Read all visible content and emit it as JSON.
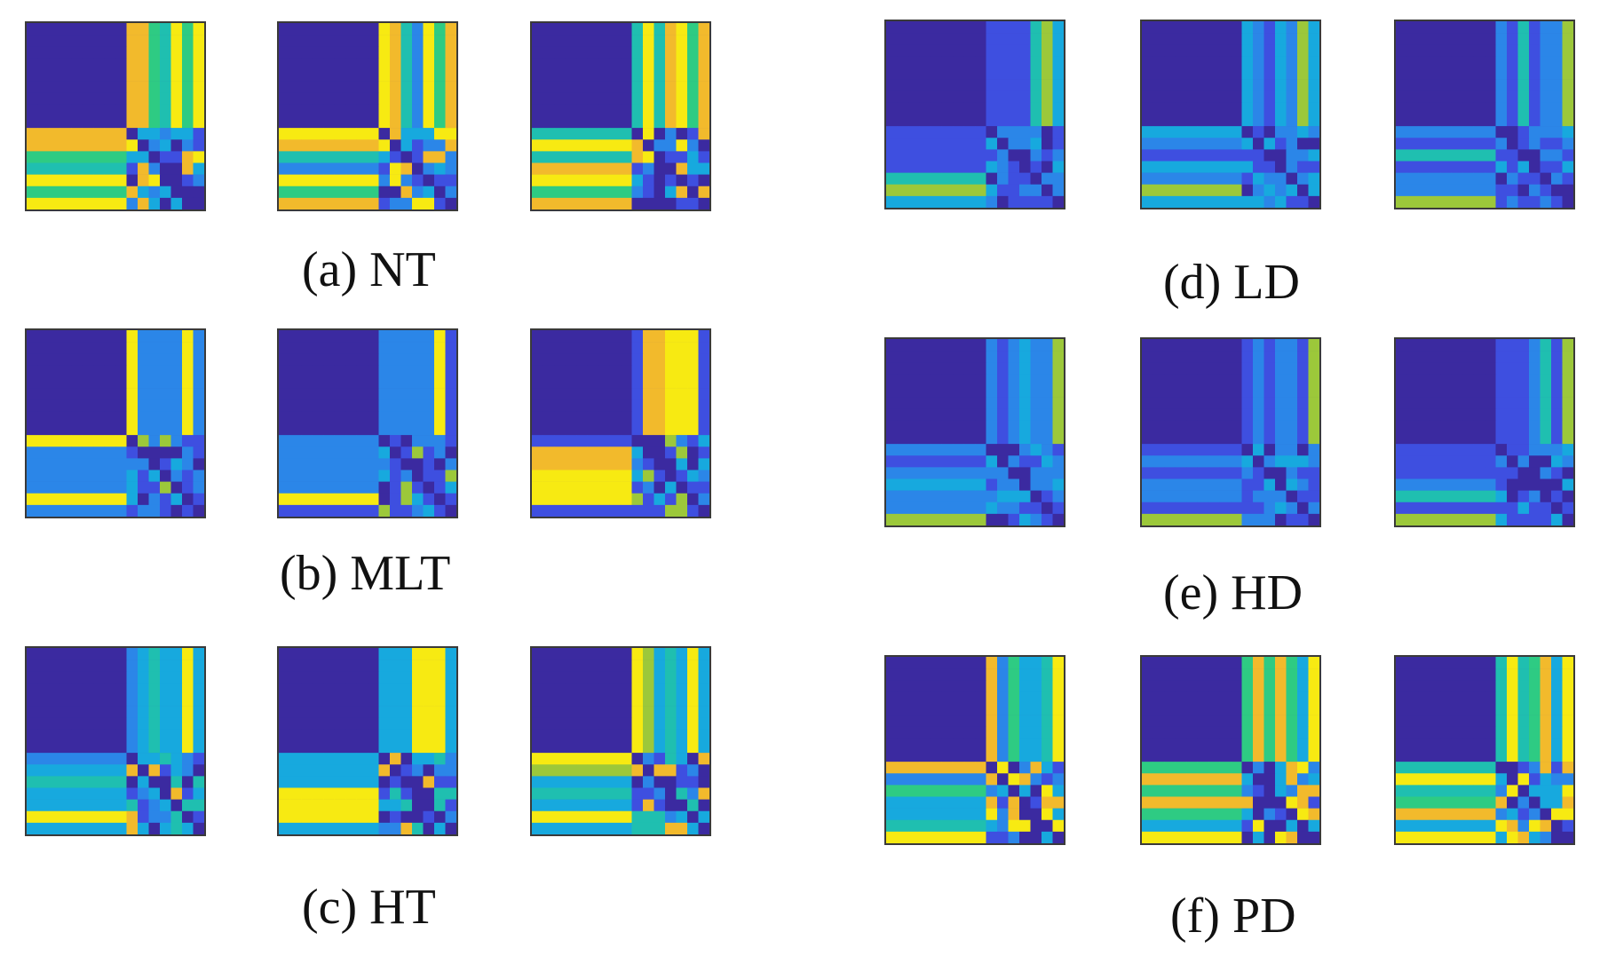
{
  "palette": {
    "c0": "#3b2aa0",
    "c1": "#3e4fe0",
    "c2": "#2b86e8",
    "c3": "#17a9de",
    "c4": "#1fbfb0",
    "c5": "#2ecb83",
    "c6": "#9cc83a",
    "c7": "#f2ba2c",
    "c8": "#f7ea12"
  },
  "panels": [
    {
      "id": "a",
      "caption": "(a) NT",
      "colorscheme": "checker-strong"
    },
    {
      "id": "b",
      "caption": "(b) MLT",
      "colorscheme": "bar-dominant"
    },
    {
      "id": "c",
      "caption": "(c) HT",
      "colorscheme": "checker-medium"
    },
    {
      "id": "d",
      "caption": "(d) LD",
      "colorscheme": "subtle"
    },
    {
      "id": "e",
      "caption": "(e) HD",
      "colorscheme": "subtle"
    },
    {
      "id": "f",
      "caption": "(f) PD",
      "colorscheme": "checker-strong"
    }
  ]
}
